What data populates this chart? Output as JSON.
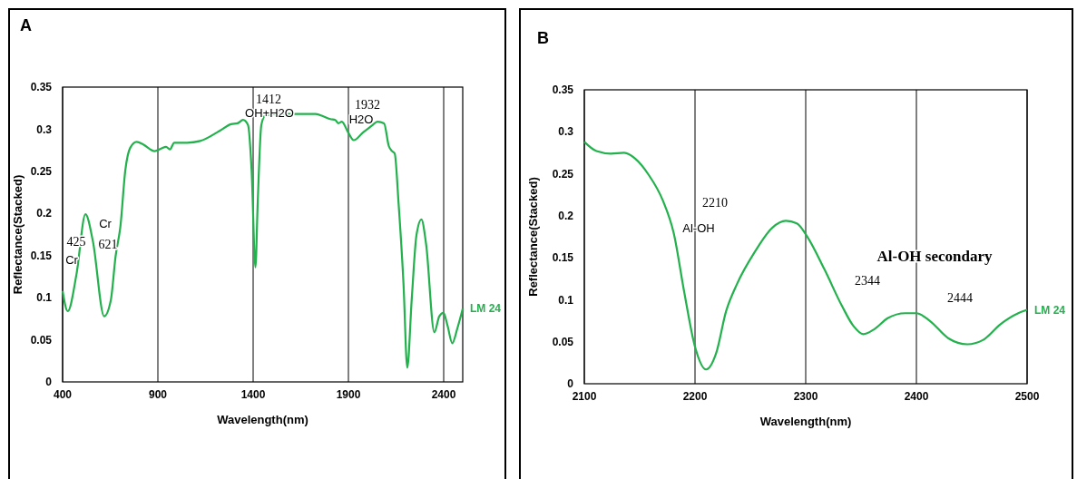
{
  "chart_data": [
    {
      "type": "line",
      "title": "A",
      "xlabel": "Wavelength(nm)",
      "ylabel": "Reflectance(Stacked)",
      "xlim": [
        400,
        2500
      ],
      "xticks": [
        400,
        900,
        1400,
        1900,
        2400
      ],
      "ylim": [
        0,
        0.35
      ],
      "yticks": [
        0,
        0.05,
        0.1,
        0.15,
        0.2,
        0.25,
        0.3,
        0.35
      ],
      "grid": "x",
      "legend": false,
      "marker": "none",
      "line_style": "solid",
      "series": [
        {
          "name": "LM 24",
          "color": "#22b14c",
          "x": [
            400,
            427,
            473,
            520,
            559,
            618,
            653,
            678,
            704,
            729,
            755,
            789,
            823,
            883,
            917,
            943,
            963,
            986,
            1054,
            1122,
            1224,
            1284,
            1318,
            1347,
            1373,
            1392,
            1412,
            1424,
            1443,
            1463,
            1515,
            1668,
            1728,
            1771,
            1805,
            1831,
            1848,
            1865,
            1899,
            1928,
            1976,
            2027,
            2052,
            2087,
            2112,
            2129,
            2143,
            2163,
            2189,
            2209,
            2232,
            2257,
            2283,
            2308,
            2351,
            2377,
            2399,
            2420,
            2445,
            2471,
            2500
          ],
          "values": [
            0.108,
            0.084,
            0.128,
            0.199,
            0.167,
            0.078,
            0.097,
            0.149,
            0.186,
            0.251,
            0.278,
            0.285,
            0.282,
            0.274,
            0.277,
            0.279,
            0.276,
            0.284,
            0.284,
            0.286,
            0.298,
            0.306,
            0.307,
            0.311,
            0.305,
            0.251,
            0.136,
            0.213,
            0.305,
            0.316,
            0.318,
            0.318,
            0.318,
            0.315,
            0.312,
            0.311,
            0.307,
            0.309,
            0.296,
            0.287,
            0.296,
            0.305,
            0.309,
            0.307,
            0.28,
            0.274,
            0.271,
            0.213,
            0.117,
            0.017,
            0.097,
            0.174,
            0.193,
            0.163,
            0.059,
            0.078,
            0.082,
            0.067,
            0.046,
            0.063,
            0.087
          ]
        }
      ],
      "annotations": [
        "425",
        "Cr",
        "Cr",
        "621",
        "1412",
        "OH+H2O",
        "1932",
        "H2O"
      ]
    },
    {
      "type": "line",
      "title": "B",
      "xlabel": "Wavelength(nm)",
      "ylabel": "Reflectance(Stacked)",
      "xlim": [
        2100,
        2500
      ],
      "xticks": [
        2100,
        2200,
        2300,
        2400,
        2500
      ],
      "ylim": [
        0,
        0.35
      ],
      "yticks": [
        0,
        0.05,
        0.1,
        0.15,
        0.2,
        0.25,
        0.3,
        0.35
      ],
      "grid": "x",
      "legend": false,
      "marker": "none",
      "line_style": "solid",
      "series": [
        {
          "name": "LM 24",
          "color": "#22b14c",
          "x": [
            2100,
            2111,
            2124,
            2136,
            2146,
            2158,
            2171,
            2181,
            2190,
            2200,
            2210,
            2219,
            2228,
            2238,
            2254,
            2270,
            2282,
            2292,
            2301,
            2317,
            2333,
            2343,
            2352,
            2362,
            2374,
            2390,
            2400,
            2412,
            2429,
            2446,
            2460,
            2476,
            2492,
            2500
          ],
          "values": [
            0.288,
            0.277,
            0.274,
            0.275,
            0.268,
            0.249,
            0.218,
            0.178,
            0.111,
            0.044,
            0.017,
            0.036,
            0.086,
            0.119,
            0.157,
            0.186,
            0.194,
            0.191,
            0.176,
            0.136,
            0.092,
            0.069,
            0.059,
            0.065,
            0.078,
            0.084,
            0.084,
            0.075,
            0.054,
            0.047,
            0.052,
            0.071,
            0.084,
            0.088
          ]
        }
      ],
      "annotations": [
        "2210",
        "Al-OH",
        "Al-OH secondary",
        "2344",
        "2444"
      ]
    }
  ]
}
